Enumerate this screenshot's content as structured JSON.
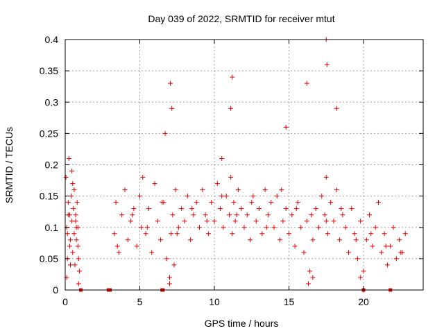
{
  "chart_data": {
    "type": "scatter",
    "title": "Day 039 of 2022, SRMTID for receiver mtut",
    "xlabel": "GPS time / hours",
    "ylabel": "SRMTID / TECUs",
    "xlim": [
      0,
      24
    ],
    "ylim": [
      0,
      0.4
    ],
    "x_ticks": [
      0,
      5,
      10,
      15,
      20
    ],
    "y_ticks": [
      0,
      0.05,
      0.1,
      0.15,
      0.2,
      0.25,
      0.3,
      0.35,
      0.4
    ],
    "x_tick_labels": [
      "0",
      "5",
      "10",
      "15",
      "20"
    ],
    "y_tick_labels": [
      "0",
      "0.05",
      "0.1",
      "0.15",
      "0.2",
      "0.25",
      "0.3",
      "0.35",
      "0.4"
    ],
    "grid": true,
    "marker": "+",
    "marker_color": "#e00000",
    "series": [
      {
        "x": [
          0.05,
          0.1,
          0.15,
          0.2,
          0.25,
          0.3,
          0.35,
          0.4,
          0.45,
          0.5,
          0.55,
          0.6,
          0.65,
          0.7,
          0.75,
          0.8,
          0.85,
          0.9,
          0.95,
          0.1,
          0.3,
          0.5,
          0.7,
          0.9,
          0.15,
          0.35,
          0.6,
          0.85,
          0.2,
          0.45,
          0.75,
          3.3,
          3.4,
          3.6,
          3.8,
          4.0,
          4.2,
          4.4,
          4.6,
          4.8,
          5.0,
          5.1,
          5.2,
          5.4,
          5.6,
          5.8,
          6.0,
          6.2,
          6.4,
          6.6,
          6.8,
          7.0,
          7.1,
          7.2,
          7.3,
          7.4,
          7.6,
          7.8,
          8.0,
          8.2,
          8.4,
          8.6,
          8.8,
          9.0,
          9.2,
          9.4,
          9.6,
          9.8,
          10.0,
          10.2,
          10.4,
          10.6,
          10.8,
          11.0,
          11.1,
          11.2,
          11.3,
          11.4,
          11.6,
          11.8,
          12.0,
          12.2,
          12.4,
          12.6,
          12.8,
          13.0,
          13.2,
          13.4,
          13.6,
          13.8,
          14.0,
          14.2,
          14.4,
          14.6,
          14.8,
          15.0,
          15.2,
          15.4,
          15.6,
          15.8,
          16.0,
          16.2,
          16.4,
          16.6,
          16.8,
          17.0,
          17.2,
          17.4,
          17.5,
          17.6,
          17.8,
          18.0,
          18.2,
          18.4,
          18.6,
          18.8,
          19.0,
          19.2,
          19.4,
          19.6,
          19.8,
          20.0,
          20.2,
          20.4,
          20.6,
          20.8,
          21.0,
          21.2,
          21.4,
          21.6,
          21.8,
          22.0,
          22.2,
          22.4,
          22.6,
          22.8,
          3.5,
          4.5,
          5.5,
          6.5,
          7.5,
          8.5,
          9.5,
          10.5,
          11.5,
          12.5,
          13.5,
          14.5,
          15.5,
          16.5,
          17.5,
          18.5,
          19.5,
          20.5,
          21.5,
          22.5,
          7.05,
          7.15,
          11.1,
          11.2,
          17.5,
          17.55,
          16.2,
          18.2,
          10.5,
          14.8,
          19.8,
          20.0,
          6.7,
          7.0,
          16.3,
          16.6
        ],
        "y": [
          0.18,
          0.1,
          0.05,
          0.14,
          0.21,
          0.12,
          0.08,
          0.15,
          0.11,
          0.06,
          0.13,
          0.09,
          0.04,
          0.12,
          0.08,
          0.14,
          0.1,
          0.05,
          0.03,
          0.02,
          0.07,
          0.17,
          0.11,
          0.01,
          0.09,
          0.04,
          0.16,
          0.07,
          0.12,
          0.19,
          0.1,
          0.09,
          0.14,
          0.06,
          0.12,
          0.16,
          0.08,
          0.11,
          0.13,
          0.07,
          0.15,
          0.1,
          0.18,
          0.09,
          0.13,
          0.06,
          0.17,
          0.11,
          0.08,
          0.14,
          0.05,
          0.02,
          0.09,
          0.12,
          0.04,
          0.16,
          0.1,
          0.13,
          0.11,
          0.15,
          0.08,
          0.12,
          0.14,
          0.1,
          0.16,
          0.12,
          0.09,
          0.14,
          0.11,
          0.17,
          0.13,
          0.1,
          0.15,
          0.12,
          0.18,
          0.09,
          0.14,
          0.11,
          0.16,
          0.13,
          0.1,
          0.12,
          0.08,
          0.15,
          0.11,
          0.13,
          0.09,
          0.16,
          0.12,
          0.14,
          0.1,
          0.15,
          0.08,
          0.11,
          0.13,
          0.09,
          0.12,
          0.07,
          0.14,
          0.1,
          0.06,
          0.11,
          0.03,
          0.08,
          0.13,
          0.1,
          0.15,
          0.12,
          0.18,
          0.09,
          0.14,
          0.11,
          0.16,
          0.08,
          0.12,
          0.1,
          0.06,
          0.13,
          0.09,
          0.05,
          0.11,
          0.03,
          0.08,
          0.12,
          0.07,
          0.1,
          0.14,
          0.06,
          0.09,
          0.04,
          0.07,
          0.1,
          0.05,
          0.08,
          0.06,
          0.09,
          0.07,
          0.12,
          0.1,
          0.14,
          0.09,
          0.13,
          0.11,
          0.15,
          0.12,
          0.14,
          0.1,
          0.16,
          0.13,
          0.12,
          0.11,
          0.13,
          0.08,
          0.09,
          0.07,
          0.06,
          0.33,
          0.29,
          0.29,
          0.34,
          0.4,
          0.36,
          0.33,
          0.29,
          0.21,
          0.26,
          0.02,
          0.0,
          0.25,
          0.01,
          0.01,
          0.02
        ]
      }
    ],
    "zero_markers_x": [
      1.05,
      2.9,
      3.0,
      6.5,
      6.55,
      20.0,
      21.8
    ]
  }
}
